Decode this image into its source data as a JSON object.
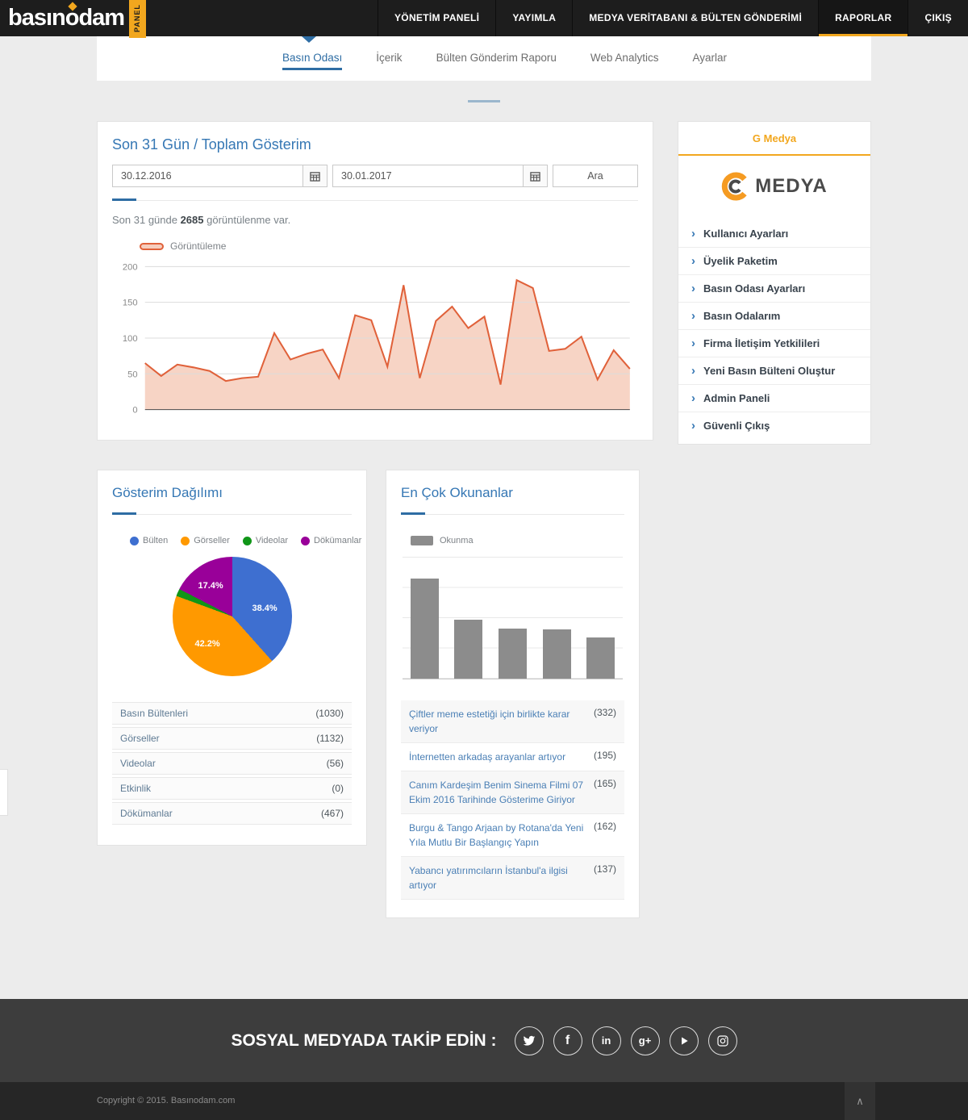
{
  "nav": {
    "logo_text": "basınodam",
    "logo_badge": "PANEL",
    "accent_color": "#f2a71e",
    "items": [
      {
        "label": "YÖNETİM PANELİ",
        "active": false
      },
      {
        "label": "YAYIMLA",
        "active": false
      },
      {
        "label": "MEDYA VERİTABANI & BÜLTEN GÖNDERİMİ",
        "active": false
      },
      {
        "label": "RAPORLAR",
        "active": true
      },
      {
        "label": "ÇIKIŞ",
        "active": false
      }
    ]
  },
  "subnav": {
    "tabs": [
      {
        "label": "Basın Odası",
        "active": true
      },
      {
        "label": "İçerik",
        "active": false
      },
      {
        "label": "Bülten Gönderim Raporu",
        "active": false
      },
      {
        "label": "Web Analytics",
        "active": false
      },
      {
        "label": "Ayarlar",
        "active": false
      }
    ]
  },
  "views_panel": {
    "title": "Son 31 Gün / Toplam Gösterim",
    "date_from": "30.12.2016",
    "date_to": "30.01.2017",
    "search_button": "Ara",
    "summary_prefix": "Son 31 günde ",
    "summary_count": "2685",
    "summary_suffix": " görüntülenme var.",
    "legend": "Görüntüleme"
  },
  "sidebar": {
    "header": "G Medya",
    "logo_text": "MEDYA",
    "items": [
      "Kullanıcı Ayarları",
      "Üyelik Paketim",
      "Basın Odası Ayarları",
      "Basın Odalarım",
      "Firma İletişim Yetkilileri",
      "Yeni Basın Bülteni Oluştur",
      "Admin Paneli",
      "Güvenli Çıkış"
    ]
  },
  "distribution_panel": {
    "title": "Gösterim Dağılımı",
    "rows": [
      {
        "label": "Basın Bültenleri",
        "count": "(1030)"
      },
      {
        "label": "Görseller",
        "count": "(1132)"
      },
      {
        "label": "Videolar",
        "count": "(56)"
      },
      {
        "label": "Etkinlik",
        "count": "(0)"
      },
      {
        "label": "Dökümanlar",
        "count": "(467)"
      }
    ]
  },
  "top_read_panel": {
    "title": "En Çok Okunanlar",
    "legend": "Okunma",
    "items": [
      {
        "title": "Çiftler meme estetiği için birlikte karar veriyor",
        "count": "(332)"
      },
      {
        "title": "İnternetten arkadaş arayanlar artıyor",
        "count": "(195)"
      },
      {
        "title": "Canım Kardeşim Benim Sinema Filmi 07 Ekim 2016 Tarihinde Gösterime Giriyor",
        "count": "(165)"
      },
      {
        "title": "Burgu & Tango Arjaan by Rotana'da Yeni Yıla Mutlu Bir Başlangıç Yapın",
        "count": "(162)"
      },
      {
        "title": "Yabancı yatırımcıların İstanbul'a ilgisi artıyor",
        "count": "(137)"
      }
    ]
  },
  "footer": {
    "heading": "SOSYAL MEDYADA TAKİP EDİN :",
    "icons": [
      "twitter",
      "facebook",
      "linkedin",
      "google-plus",
      "play",
      "instagram"
    ],
    "copyright": "Copyright © 2015. Basınodam.com"
  },
  "chart_data": [
    {
      "type": "area",
      "title": "Son 31 Gün / Toplam Gösterim",
      "series": [
        {
          "name": "Görüntüleme",
          "values": [
            65,
            47,
            63,
            59,
            54,
            40,
            44,
            46,
            107,
            70,
            78,
            84,
            44,
            132,
            125,
            60,
            174,
            44,
            124,
            144,
            114,
            130,
            35,
            181,
            170,
            82,
            85,
            102,
            42,
            83,
            57
          ]
        }
      ],
      "ylim": [
        0,
        200
      ],
      "yticks": [
        0,
        50,
        100,
        150,
        200
      ],
      "line_color": "#e0613a",
      "fill_color": "#f7d4c5",
      "grid": true,
      "legend_position": "top-left"
    },
    {
      "type": "pie",
      "title": "Gösterim Dağılımı",
      "labels": [
        "Bülten",
        "Görseller",
        "Videolar",
        "Dökümanlar"
      ],
      "values": [
        38.4,
        42.2,
        2.0,
        17.4
      ],
      "colors": [
        "#3e6fd0",
        "#ff9900",
        "#109618",
        "#990099"
      ],
      "display_labels": [
        "38.4%",
        "42.2%",
        "17.4%"
      ],
      "legend_position": "top"
    },
    {
      "type": "bar",
      "title": "En Çok Okunanlar",
      "legend": "Okunma",
      "categories": [
        "Çiftler meme estetiği için birlikte karar veriyor",
        "İnternetten arkadaş arayanlar artıyor",
        "Canım Kardeşim Benim Sinema Filmi 07 Ekim 2016 Tarihinde Gösterime Giriyor",
        "Burgu & Tango Arjaan by Rotana'da Yeni Yıla Mutlu Bir Başlangıç Yapın",
        "Yabancı yatırımcıların İstanbul'a ilgisi artıyor"
      ],
      "values": [
        332,
        195,
        165,
        162,
        137
      ],
      "ylim": [
        0,
        400
      ],
      "bar_color": "#8c8c8c",
      "grid": true,
      "legend_position": "top-left"
    }
  ]
}
